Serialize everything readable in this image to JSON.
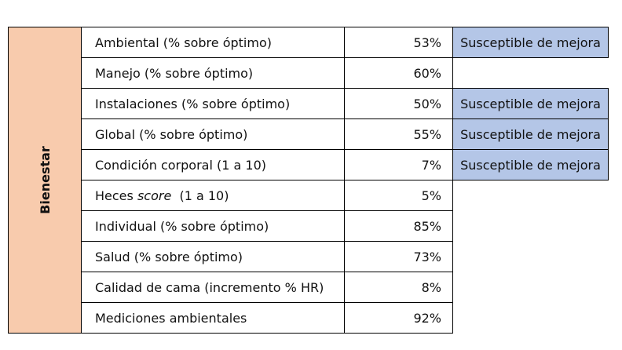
{
  "category": "Bienestar",
  "rows": [
    {
      "label": "Ambiental (% sobre óptimo)",
      "value": "53%",
      "note": "Susceptible de mejora"
    },
    {
      "label": "Manejo (% sobre óptimo)",
      "value": "60%",
      "note": ""
    },
    {
      "label": "Instalaciones (% sobre óptimo)",
      "value": "50%",
      "note": "Susceptible de mejora"
    },
    {
      "label": "Global (% sobre óptimo)",
      "value": "55%",
      "note": "Susceptible de mejora"
    },
    {
      "label": "Condición corporal (1 a 10)",
      "value": "7%",
      "note": "Susceptible de mejora"
    },
    {
      "label_prefix": "Heces ",
      "label_em": "score",
      "label_suffix": "  (1 a 10)",
      "value": "5%",
      "note": ""
    },
    {
      "label": "Individual (% sobre óptimo)",
      "value": "85%",
      "note": ""
    },
    {
      "label": "Salud (% sobre óptimo)",
      "value": "73%",
      "note": ""
    },
    {
      "label": "Calidad de cama (incremento % HR)",
      "value": "8%",
      "note": ""
    },
    {
      "label": "Mediciones ambientales",
      "value": "92%",
      "note": ""
    }
  ]
}
